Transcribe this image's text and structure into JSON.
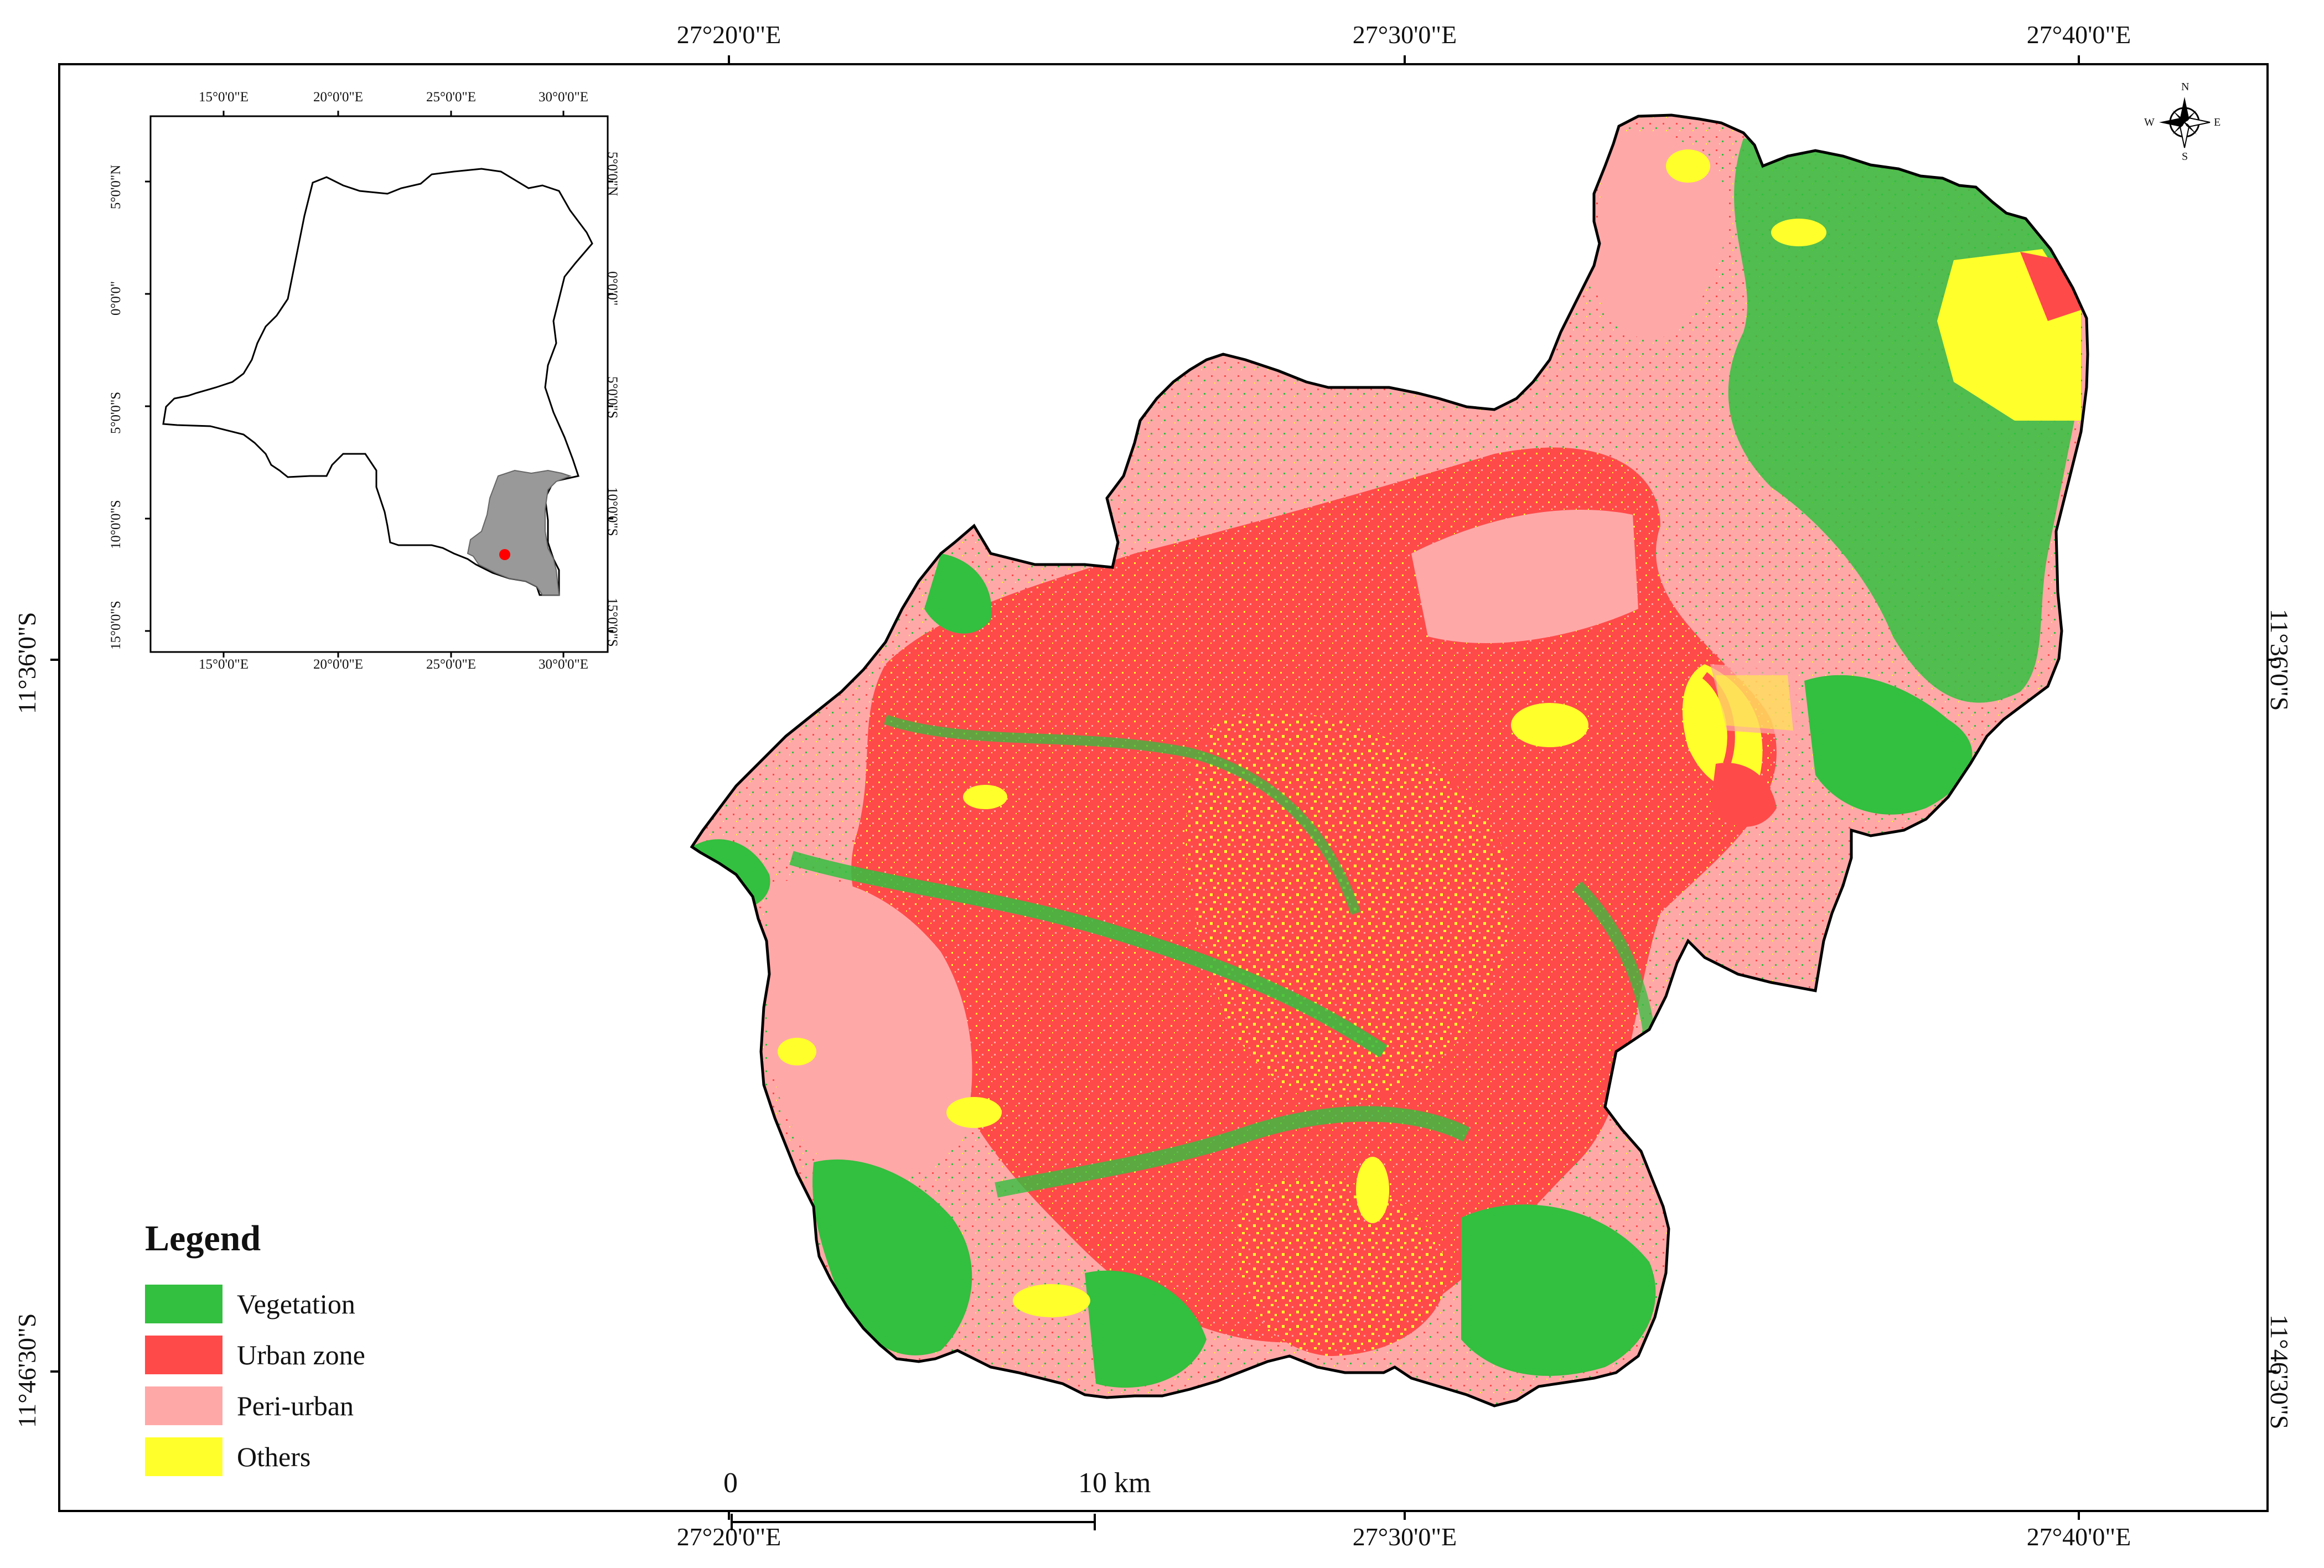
{
  "top_longitudes": [
    "27°20'0\"E",
    "27°30'0\"E",
    "27°40'0\"E"
  ],
  "bottom_longitudes": [
    "27°20'0\"E",
    "27°30'0\"E",
    "27°40'0\"E"
  ],
  "left_latitudes": [
    "11°36'0\"S",
    "11°46'30\"S"
  ],
  "right_latitudes": [
    "11°36'0\"S",
    "11°46'30\"S"
  ],
  "inset": {
    "top_longitudes": [
      "15°0'0\"E",
      "20°0'0\"E",
      "25°0'0\"E",
      "30°0'0\"E"
    ],
    "bottom_longitudes": [
      "15°0'0\"E",
      "20°0'0\"E",
      "25°0'0\"E",
      "30°0'0\"E"
    ],
    "left_latitudes": [
      "5°0'0\"N",
      "0°0'0\"",
      "5°0'0\"S",
      "10°0'0\"S",
      "15°0'0\"S"
    ],
    "right_latitudes": [
      "5°0'0\"N",
      "0°0'0\"",
      "5°0'0\"S",
      "10°0'0\"S",
      "15°0'0\"S"
    ],
    "country_fill": "#ffffff",
    "region_fill": "#999999",
    "city_marker_color": "#ff0000"
  },
  "compass": {
    "n": "N",
    "s": "S",
    "e": "E",
    "w": "W"
  },
  "legend": {
    "title": "Legend",
    "items": [
      {
        "label": "Vegetation",
        "color": "#33bf3f"
      },
      {
        "label": "Urban zone",
        "color": "#ff4a4a"
      },
      {
        "label": "Peri-urban",
        "color": "#ffa8a8"
      },
      {
        "label": "Others",
        "color": "#ffff2b"
      }
    ]
  },
  "scale_bar": {
    "start_label": "0",
    "end_label": "10 km"
  }
}
